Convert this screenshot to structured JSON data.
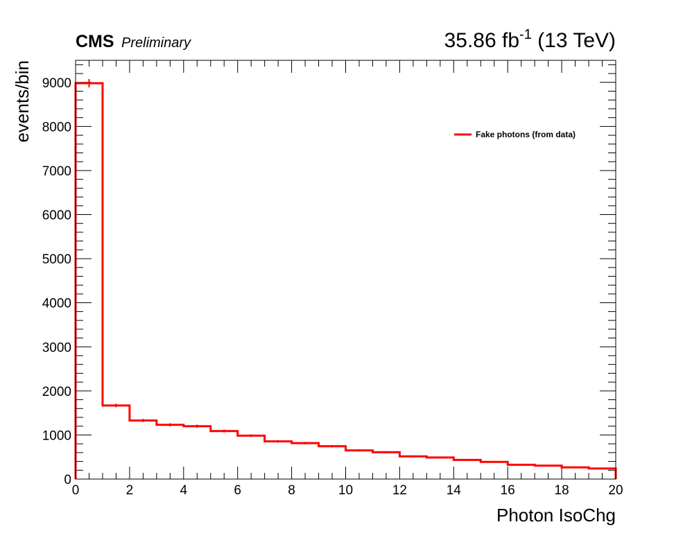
{
  "header": {
    "experiment": "CMS",
    "status": "Preliminary",
    "lumi_value": "35.86 fb",
    "lumi_exp": "-1",
    "energy": " (13 TeV)"
  },
  "chart_data": {
    "type": "histogram",
    "xlabel": "Photon IsoChg",
    "ylabel": "events/bin",
    "xlim": [
      0,
      20
    ],
    "ylim": [
      0,
      9500
    ],
    "x_ticks": [
      0,
      2,
      4,
      6,
      8,
      10,
      12,
      14,
      16,
      18,
      20
    ],
    "y_ticks": [
      0,
      1000,
      2000,
      3000,
      4000,
      5000,
      6000,
      7000,
      8000,
      9000
    ],
    "bin_edges": [
      0,
      1,
      2,
      3,
      4,
      5,
      6,
      7,
      8,
      9,
      10,
      11,
      12,
      13,
      14,
      15,
      16,
      17,
      18,
      19,
      20
    ],
    "series": [
      {
        "name": "Fake photons (from data)",
        "color": "#ff0000",
        "values": [
          8980,
          1670,
          1330,
          1230,
          1200,
          1090,
          985,
          855,
          815,
          745,
          650,
          610,
          515,
          490,
          435,
          390,
          325,
          305,
          265,
          240
        ],
        "errors": [
          95,
          41,
          36,
          35,
          35,
          33,
          31,
          29,
          29,
          27,
          25,
          25,
          23,
          22,
          21,
          20,
          18,
          17,
          16,
          15
        ]
      }
    ],
    "legend_position": "top-right",
    "grid": false
  }
}
